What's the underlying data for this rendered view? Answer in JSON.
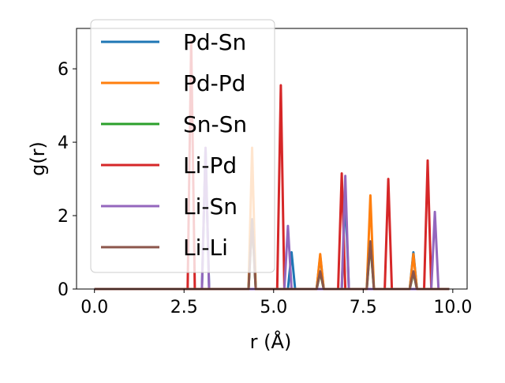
{
  "chart_data": {
    "type": "line",
    "xlabel": "r (Å)",
    "ylabel": "g(r)",
    "xlim": [
      -0.5,
      10.4
    ],
    "ylim": [
      0,
      7.1
    ],
    "xticks": [
      0.0,
      2.5,
      5.0,
      7.5,
      10.0
    ],
    "xtick_labels": [
      "0.0",
      "2.5",
      "5.0",
      "7.5",
      "10.0"
    ],
    "yticks": [
      0,
      2,
      4,
      6
    ],
    "ytick_labels": [
      "0",
      "2",
      "4",
      "6"
    ],
    "grid": false,
    "legend_position": "upper-left",
    "series": [
      {
        "name": "Pd-Sn",
        "color": "#1f77b4",
        "peaks": [
          [
            3.1,
            3.8
          ],
          [
            5.5,
            1.0
          ],
          [
            6.3,
            0.9
          ],
          [
            7.0,
            2.6
          ],
          [
            8.9,
            1.0
          ]
        ]
      },
      {
        "name": "Pd-Pd",
        "color": "#ff7f0e",
        "peaks": [
          [
            4.4,
            3.85
          ],
          [
            6.3,
            0.95
          ],
          [
            7.7,
            2.55
          ],
          [
            8.9,
            0.95
          ]
        ]
      },
      {
        "name": "Sn-Sn",
        "color": "#2ca02c",
        "peaks": [
          [
            4.4,
            1.9
          ],
          [
            6.3,
            0.45
          ],
          [
            7.7,
            1.25
          ],
          [
            8.9,
            0.45
          ]
        ]
      },
      {
        "name": "Li-Pd",
        "color": "#d62728",
        "peaks": [
          [
            2.7,
            6.75
          ],
          [
            5.2,
            5.55
          ],
          [
            6.9,
            3.15
          ],
          [
            8.2,
            3.0
          ],
          [
            9.3,
            3.5
          ]
        ]
      },
      {
        "name": "Li-Sn",
        "color": "#9467bd",
        "peaks": [
          [
            3.1,
            3.85
          ],
          [
            5.4,
            1.72
          ],
          [
            7.0,
            3.08
          ],
          [
            9.5,
            2.1
          ]
        ]
      },
      {
        "name": "Li-Li",
        "color": "#8c564b",
        "peaks": [
          [
            4.4,
            1.9
          ],
          [
            6.3,
            0.48
          ],
          [
            7.7,
            1.3
          ],
          [
            8.9,
            0.48
          ]
        ]
      }
    ]
  }
}
